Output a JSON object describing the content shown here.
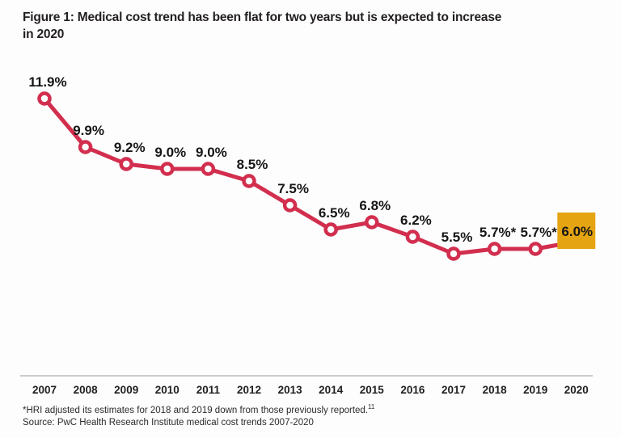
{
  "header": {
    "title_lines": [
      "Figure 1: Medical cost trend has been flat for two years but is expected to increase",
      "in 2020"
    ]
  },
  "chart_data": {
    "type": "line",
    "title": "Figure 1: Medical cost trend has been flat for two years but is expected to increase in 2020",
    "categories": [
      "2007",
      "2008",
      "2009",
      "2010",
      "2011",
      "2012",
      "2013",
      "2014",
      "2015",
      "2016",
      "2017",
      "2018",
      "2019",
      "2020"
    ],
    "values": [
      11.9,
      9.9,
      9.2,
      9.0,
      9.0,
      8.5,
      7.5,
      6.5,
      6.8,
      6.2,
      5.5,
      5.7,
      5.7,
      6.0
    ],
    "labels": [
      "11.9%",
      "9.9%",
      "9.2%",
      "9.0%",
      "9.0%",
      "8.5%",
      "7.5%",
      "6.5%",
      "6.8%",
      "6.2%",
      "5.5%",
      "5.7%*",
      "5.7%*",
      "6.0%"
    ],
    "highlight_index": 13,
    "xlabel": "",
    "ylabel": "",
    "ylim": [
      5.0,
      12.5
    ],
    "grid": false,
    "legend": "none",
    "y_axis_shown": false,
    "colors": {
      "line": "#D22E4E",
      "marker_fill": "#FFFFFF",
      "highlight_box": "#E5A411",
      "label_text": "#161616",
      "axis_line": "#CBCBCB"
    }
  },
  "footnotes": {
    "note": "*HRI adjusted its estimates for 2018 and 2019 down from those previously reported.",
    "note_ref": "11",
    "source": "Source: PwC Health Research Institute medical cost trends 2007-2020"
  }
}
